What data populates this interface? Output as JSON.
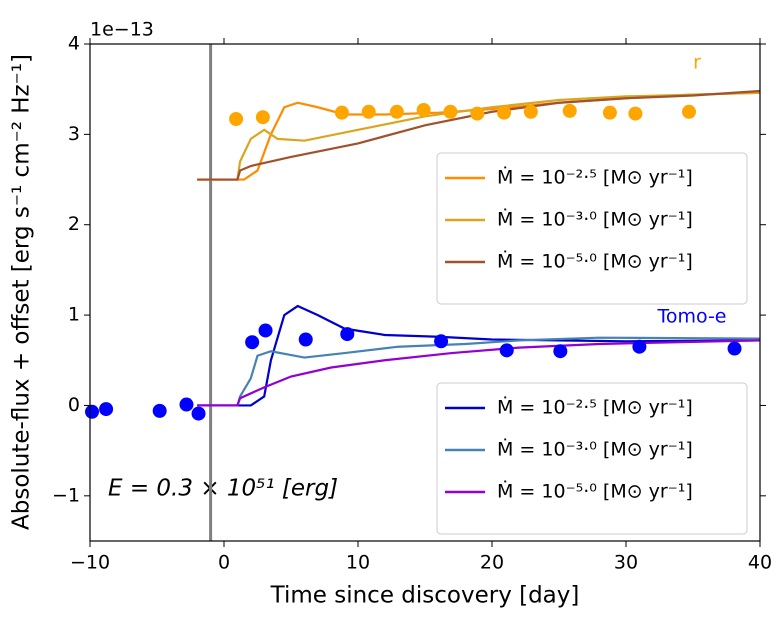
{
  "chart_data": {
    "type": "line",
    "xlabel": "Time since discovery [day]",
    "ylabel": "Absolute-flux + offset [erg s⁻¹ cm⁻² Hz⁻¹]",
    "y_offset_label": "1e−13",
    "xlim": [
      -10,
      40
    ],
    "ylim": [
      -1.5,
      4
    ],
    "xticks": [
      {
        "value": -10,
        "label": "−10"
      },
      0,
      10,
      20,
      30,
      40
    ],
    "yticks": [
      {
        "value": -1,
        "label": "−1"
      },
      0,
      1,
      2,
      3,
      4
    ],
    "vlines": [
      {
        "x": -1,
        "color": "#808080"
      }
    ],
    "annotations": [
      {
        "text": "E = 0.3 × 10⁵¹ [erg]"
      },
      {
        "text": "r",
        "color": "#ffa500"
      },
      {
        "text": "Tomo-e",
        "color": "#0000ff"
      }
    ],
    "series": [
      {
        "name": "Ṁ = 10⁻²·⁵ [M⊙ yr⁻¹]",
        "color": "#ff8c00",
        "legend_loc": "center right",
        "x": [
          -2,
          1.5,
          2.5,
          3.5,
          4.5,
          5.5,
          7,
          9,
          12,
          16,
          20,
          25,
          30,
          35,
          40
        ],
        "values": [
          2.5,
          2.5,
          2.6,
          3.0,
          3.3,
          3.35,
          3.3,
          3.22,
          3.22,
          3.24,
          3.28,
          3.35,
          3.4,
          3.44,
          3.46
        ]
      },
      {
        "name": "Ṁ = 10⁻³·⁰ [M⊙ yr⁻¹]",
        "color": "#daa520",
        "legend_loc": "center right",
        "x": [
          -2,
          1,
          1.2,
          2,
          3,
          4,
          6,
          10,
          15,
          20,
          25,
          30,
          40
        ],
        "values": [
          2.5,
          2.5,
          2.7,
          2.95,
          3.05,
          2.95,
          2.93,
          3.05,
          3.2,
          3.3,
          3.38,
          3.42,
          3.46
        ]
      },
      {
        "name": "Ṁ = 10⁻⁵·⁰ [M⊙ yr⁻¹]",
        "color": "#a0522d",
        "legend_loc": "center right",
        "x": [
          -2,
          1,
          1.2,
          2,
          5,
          10,
          15,
          20,
          25,
          30,
          35,
          40
        ],
        "values": [
          2.5,
          2.5,
          2.6,
          2.65,
          2.75,
          2.9,
          3.1,
          3.25,
          3.35,
          3.4,
          3.43,
          3.48
        ]
      },
      {
        "name": "Ṁ = 10⁻²·⁵ [M⊙ yr⁻¹]",
        "color": "#0000cd",
        "legend_loc": "lower right",
        "x": [
          -2,
          2,
          3,
          3.5,
          4.5,
          5.5,
          7,
          9,
          12,
          16,
          20,
          25,
          30,
          40
        ],
        "values": [
          0,
          0,
          0.1,
          0.5,
          1.0,
          1.1,
          1.0,
          0.85,
          0.78,
          0.76,
          0.73,
          0.72,
          0.71,
          0.72
        ]
      },
      {
        "name": "Ṁ = 10⁻³·⁰ [M⊙ yr⁻¹]",
        "color": "#4682b4",
        "legend_loc": "lower right",
        "x": [
          -2,
          1,
          1.2,
          2,
          2.5,
          3.5,
          6,
          9,
          13,
          18,
          22,
          28,
          40
        ],
        "values": [
          0,
          0,
          0.1,
          0.3,
          0.55,
          0.6,
          0.53,
          0.58,
          0.65,
          0.68,
          0.72,
          0.75,
          0.74
        ]
      },
      {
        "name": "Ṁ = 10⁻⁵·⁰ [M⊙ yr⁻¹]",
        "color": "#9400d3",
        "legend_loc": "lower right",
        "x": [
          -2,
          1,
          1.2,
          3,
          5,
          8,
          12,
          17,
          22,
          28,
          40
        ],
        "values": [
          0,
          0,
          0.08,
          0.2,
          0.32,
          0.42,
          0.5,
          0.58,
          0.64,
          0.68,
          0.72
        ]
      },
      {
        "type": "scatter",
        "color": "#ffa500",
        "x": [
          0.9,
          2.9,
          8.8,
          10.8,
          12.9,
          14.9,
          16.9,
          18.9,
          20.9,
          22.9,
          25.8,
          28.8,
          30.7,
          34.7
        ],
        "values": [
          3.17,
          3.19,
          3.24,
          3.25,
          3.25,
          3.27,
          3.25,
          3.23,
          3.24,
          3.25,
          3.26,
          3.24,
          3.23,
          3.25
        ]
      },
      {
        "type": "scatter",
        "color": "#0000ff",
        "x": [
          -9.85,
          -8.8,
          -4.8,
          -2.8,
          -1.9,
          2.1,
          3.1,
          6.1,
          9.2,
          16.2,
          21.1,
          25.1,
          31.0,
          38.1
        ],
        "values": [
          -0.07,
          -0.04,
          -0.06,
          0.01,
          -0.09,
          0.7,
          0.83,
          0.73,
          0.79,
          0.71,
          0.61,
          0.6,
          0.65,
          0.63
        ]
      }
    ]
  }
}
